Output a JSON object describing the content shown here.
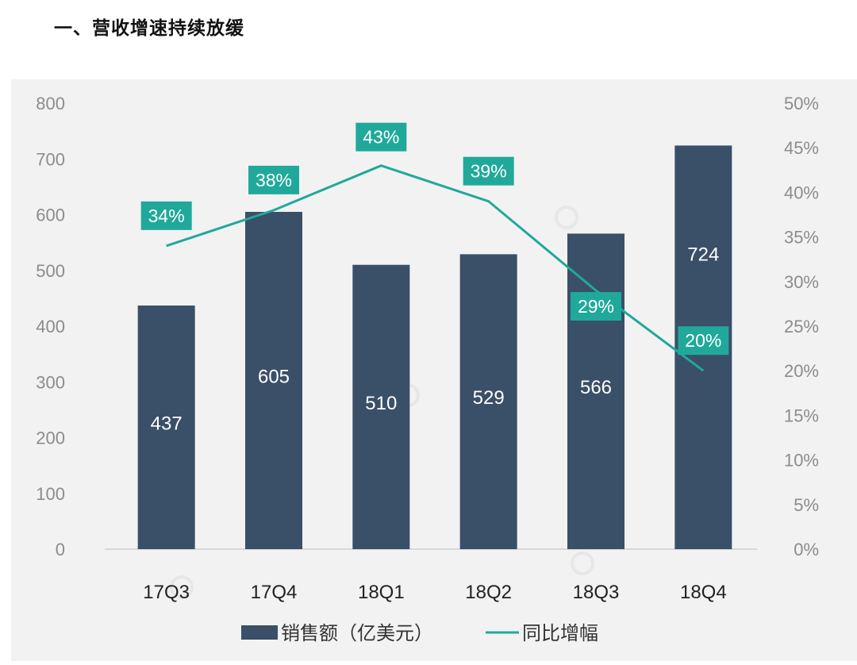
{
  "heading": "一、营收增速持续放缓",
  "chart_data": {
    "type": "bar",
    "categories": [
      "17Q3",
      "17Q4",
      "18Q1",
      "18Q2",
      "18Q3",
      "18Q4"
    ],
    "series": [
      {
        "name": "销售额（亿美元）",
        "type": "bar",
        "axis": "left",
        "values": [
          437,
          605,
          510,
          529,
          566,
          724
        ],
        "color": "#3a4f68"
      },
      {
        "name": "同比增幅",
        "type": "line",
        "axis": "right",
        "values": [
          34,
          38,
          43,
          39,
          29,
          20
        ],
        "value_labels": [
          "34%",
          "38%",
          "43%",
          "39%",
          "29%",
          "20%"
        ],
        "color": "#20a99a"
      }
    ],
    "y_left": {
      "lim": [
        0,
        800
      ],
      "ticks": [
        "0",
        "100",
        "200",
        "300",
        "400",
        "500",
        "600",
        "700",
        "800"
      ]
    },
    "y_right": {
      "lim": [
        0,
        50
      ],
      "ticks": [
        "0%",
        "5%",
        "10%",
        "15%",
        "20%",
        "25%",
        "30%",
        "35%",
        "40%",
        "45%",
        "50%"
      ]
    },
    "grid": false,
    "legend_position": "bottom",
    "colors": {
      "background": "#f2f2f2",
      "tick_text": "#8c8c8c",
      "category_text": "#222222",
      "bar_label": "#ffffff",
      "line_label_bg": "#20a99a",
      "line_label_text": "#ffffff"
    }
  }
}
